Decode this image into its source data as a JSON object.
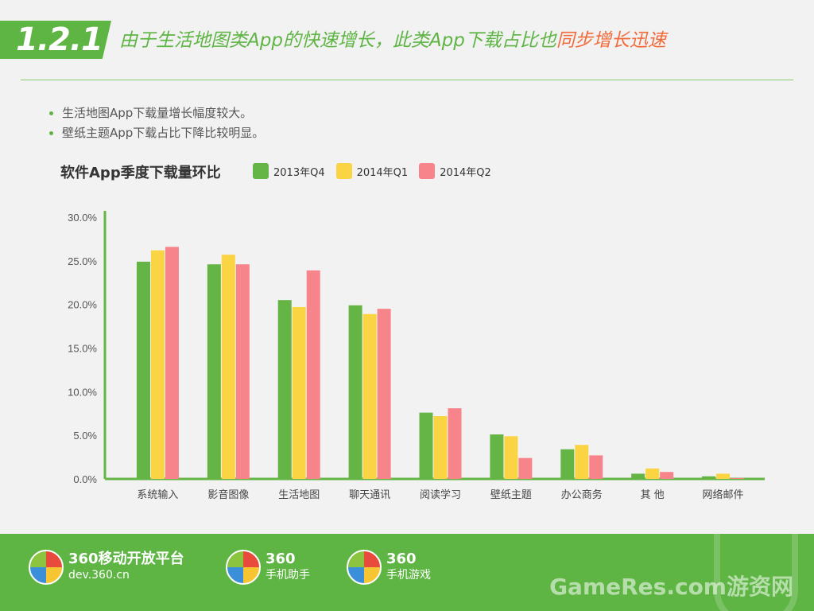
{
  "header": {
    "section_number": "1.2.1",
    "headline": "由于生活地图类App的快速增长，此类App下载占比也",
    "headline_highlight": "同步增长迅速"
  },
  "bullets": [
    "生活地图App下载量增长幅度较大。",
    "壁纸主题App下载占比下降比较明显。"
  ],
  "colors": {
    "accent": "#5eb544",
    "highlight": "#f26b3a"
  },
  "chart_data": {
    "type": "bar",
    "title": "软件App季度下载量环比",
    "categories": [
      "系统输入",
      "影音图像",
      "生活地图",
      "聊天通讯",
      "阅读学习",
      "壁纸主题",
      "办公商务",
      "其 他",
      "网络邮件"
    ],
    "series": [
      {
        "name": "2013年Q4",
        "color": "#65b446",
        "values": [
          24.9,
          24.6,
          20.5,
          19.9,
          7.6,
          5.1,
          3.4,
          0.6,
          0.3
        ]
      },
      {
        "name": "2014年Q1",
        "color": "#fbd444",
        "values": [
          26.2,
          25.7,
          19.7,
          18.9,
          7.2,
          4.9,
          3.9,
          1.2,
          0.6
        ]
      },
      {
        "name": "2014年Q2",
        "color": "#f7848a",
        "values": [
          26.6,
          24.6,
          23.9,
          19.5,
          8.1,
          2.4,
          2.7,
          0.8,
          0.1
        ]
      }
    ],
    "y_ticks": [
      "30.0%",
      "25.0%",
      "20.0%",
      "15.0%",
      "10.0%",
      "5.0%",
      "0.0%"
    ],
    "ylim": [
      0,
      30
    ],
    "grid": false,
    "legend_position": "top"
  },
  "footer": {
    "brands": [
      {
        "main": "360移动开放平台",
        "sub": "dev.360.cn"
      },
      {
        "main": "360",
        "sub": "手机助手"
      },
      {
        "main": "360",
        "sub": "手机游戏"
      }
    ],
    "watermark": "GameRes.com游资网"
  }
}
